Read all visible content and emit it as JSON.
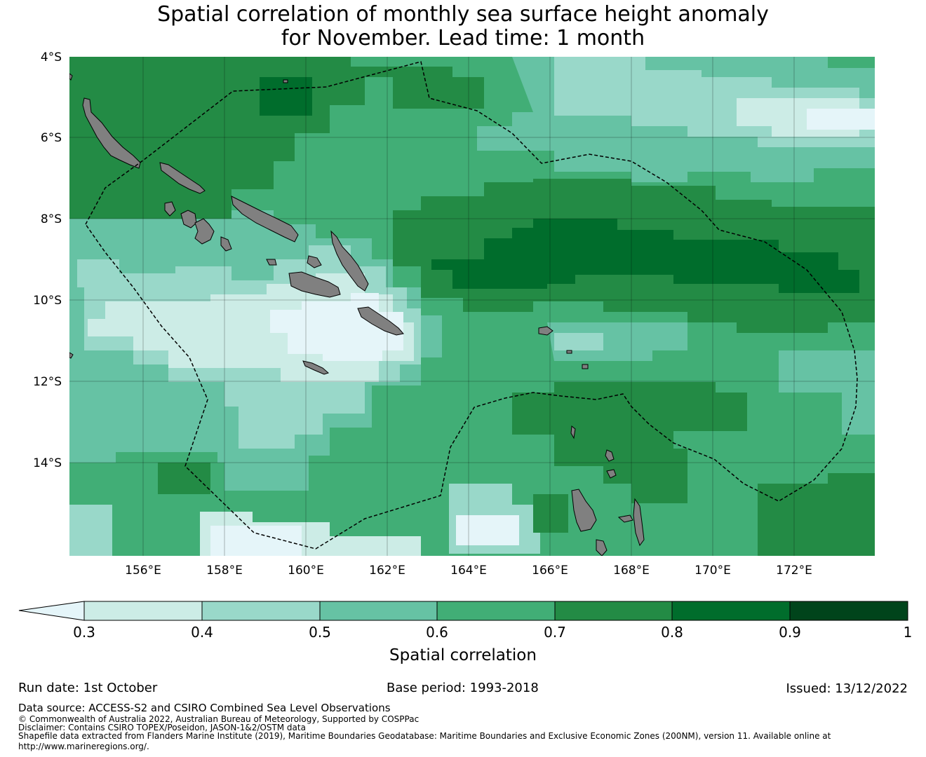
{
  "title": {
    "line1": "Spatial correlation of monthly sea surface height anomaly",
    "line2": "for November. Lead time: 1 month"
  },
  "map": {
    "lat_labels": [
      "4°S",
      "6°S",
      "8°S",
      "10°S",
      "12°S",
      "14°S"
    ],
    "lon_labels": [
      "156°E",
      "158°E",
      "160°E",
      "162°E",
      "164°E",
      "166°E",
      "168°E",
      "170°E",
      "172°E"
    ],
    "land_color": "#808080"
  },
  "colorbar": {
    "ticks": [
      "0.3",
      "0.4",
      "0.5",
      "0.6",
      "0.7",
      "0.8",
      "0.9",
      "1"
    ],
    "label": "Spatial correlation",
    "colors": [
      "#e5f5f9",
      "#ccece6",
      "#99d8c9",
      "#66c2a4",
      "#41ae76",
      "#238b45",
      "#006d2c",
      "#00441b"
    ]
  },
  "footer": {
    "run_date": "Run date: 1st October",
    "base_period": "Base period: 1993-2018",
    "issued": "Issued: 13/12/2022",
    "data_source": "Data source: ACCESS-S2 and CSIRO Combined Sea Level Observations",
    "copyright": "© Commonwealth of Australia 2022, Australian Bureau of Meteorology, Supported by COSPPac",
    "disclaimer": "Disclaimer: Contains CSIRO TOPEX/Poseidon, JASON-1&2/OSTM data",
    "shapefile_line1": "Shapefile data extracted from Flanders Marine Institute (2019), Maritime Boundaries Geodatabase: Maritime Boundaries and Exclusive Economic Zones (200NM), version 11. Available online at",
    "shapefile_line2": "http://www.marineregions.org/."
  }
}
